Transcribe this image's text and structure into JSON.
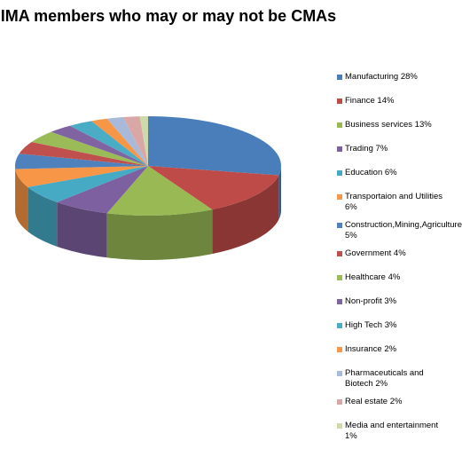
{
  "chart_data": {
    "type": "pie",
    "title": "IMA members who may or may not be CMAs",
    "legend_position": "right",
    "three_d": true,
    "slices": [
      {
        "label": "Manufacturing 28%",
        "value": 28,
        "color": "#4a7ebb"
      },
      {
        "label": "Finance 14%",
        "value": 14,
        "color": "#be4b48"
      },
      {
        "label": "Business services 13%",
        "value": 13,
        "color": "#98b954"
      },
      {
        "label": "Trading 7%",
        "value": 7,
        "color": "#7d60a0"
      },
      {
        "label": "Education 6%",
        "value": 6,
        "color": "#46aac5"
      },
      {
        "label": "Transportaion and Utilities 6%",
        "value": 6,
        "color": "#f79646"
      },
      {
        "label": "Construction,Mining,Agriculture 5%",
        "value": 5,
        "color": "#4f81bd"
      },
      {
        "label": "Government 4%",
        "value": 4,
        "color": "#c0504d"
      },
      {
        "label": "Healthcare 4%",
        "value": 4,
        "color": "#9bbb59"
      },
      {
        "label": "Non-profit 3%",
        "value": 3,
        "color": "#8064a2"
      },
      {
        "label": "High Tech 3%",
        "value": 3,
        "color": "#4bacc6"
      },
      {
        "label": "Insurance 2%",
        "value": 2,
        "color": "#f79646"
      },
      {
        "label": "Pharmaceuticals and Biotech 2%",
        "value": 2,
        "color": "#a9b9d9"
      },
      {
        "label": "Real estate 2%",
        "value": 2,
        "color": "#d9a7a6"
      },
      {
        "label": "Media and entertainment 1%",
        "value": 1,
        "color": "#cddbaa"
      }
    ]
  }
}
